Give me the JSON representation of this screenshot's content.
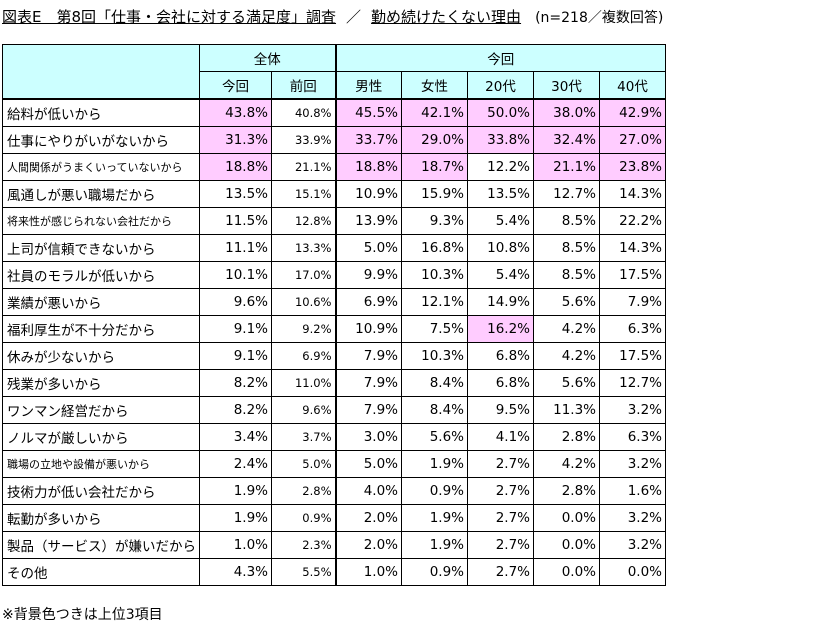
{
  "title": {
    "main": "図表E　第8回「仕事・会社に対する満足度」調査",
    "separator": "／",
    "subtitle": "勤め続けたくない理由",
    "note": "(n=218／複数回答)"
  },
  "table": {
    "group_headers": [
      "全体",
      "今回"
    ],
    "columns": [
      "今回",
      "前回",
      "男性",
      "女性",
      "20代",
      "30代",
      "40代"
    ],
    "rows": [
      {
        "label": "給料が低いから",
        "values": [
          "43.8%",
          "40.8%",
          "45.5%",
          "42.1%",
          "50.0%",
          "38.0%",
          "42.9%"
        ],
        "highlight": [
          true,
          false,
          true,
          true,
          true,
          true,
          true
        ]
      },
      {
        "label": "仕事にやりがいがないから",
        "values": [
          "31.3%",
          "33.9%",
          "33.7%",
          "29.0%",
          "33.8%",
          "32.4%",
          "27.0%"
        ],
        "highlight": [
          true,
          false,
          true,
          true,
          true,
          true,
          true
        ]
      },
      {
        "label": "人間関係がうまくいっていないから",
        "values": [
          "18.8%",
          "21.1%",
          "18.8%",
          "18.7%",
          "12.2%",
          "21.1%",
          "23.8%"
        ],
        "highlight": [
          true,
          false,
          true,
          true,
          false,
          true,
          true
        ]
      },
      {
        "label": "風通しが悪い職場だから",
        "values": [
          "13.5%",
          "15.1%",
          "10.9%",
          "15.9%",
          "13.5%",
          "12.7%",
          "14.3%"
        ],
        "highlight": [
          false,
          false,
          false,
          false,
          false,
          false,
          false
        ]
      },
      {
        "label": "将来性が感じられない会社だから",
        "values": [
          "11.5%",
          "12.8%",
          "13.9%",
          "9.3%",
          "5.4%",
          "8.5%",
          "22.2%"
        ],
        "highlight": [
          false,
          false,
          false,
          false,
          false,
          false,
          false
        ]
      },
      {
        "label": "上司が信頼できないから",
        "values": [
          "11.1%",
          "13.3%",
          "5.0%",
          "16.8%",
          "10.8%",
          "8.5%",
          "14.3%"
        ],
        "highlight": [
          false,
          false,
          false,
          false,
          false,
          false,
          false
        ]
      },
      {
        "label": "社員のモラルが低いから",
        "values": [
          "10.1%",
          "17.0%",
          "9.9%",
          "10.3%",
          "5.4%",
          "8.5%",
          "17.5%"
        ],
        "highlight": [
          false,
          false,
          false,
          false,
          false,
          false,
          false
        ]
      },
      {
        "label": "業績が悪いから",
        "values": [
          "9.6%",
          "10.6%",
          "6.9%",
          "12.1%",
          "14.9%",
          "5.6%",
          "7.9%"
        ],
        "highlight": [
          false,
          false,
          false,
          false,
          false,
          false,
          false
        ]
      },
      {
        "label": "福利厚生が不十分だから",
        "values": [
          "9.1%",
          "9.2%",
          "10.9%",
          "7.5%",
          "16.2%",
          "4.2%",
          "6.3%"
        ],
        "highlight": [
          false,
          false,
          false,
          false,
          true,
          false,
          false
        ]
      },
      {
        "label": "休みが少ないから",
        "values": [
          "9.1%",
          "6.9%",
          "7.9%",
          "10.3%",
          "6.8%",
          "4.2%",
          "17.5%"
        ],
        "highlight": [
          false,
          false,
          false,
          false,
          false,
          false,
          false
        ]
      },
      {
        "label": "残業が多いから",
        "values": [
          "8.2%",
          "11.0%",
          "7.9%",
          "8.4%",
          "6.8%",
          "5.6%",
          "12.7%"
        ],
        "highlight": [
          false,
          false,
          false,
          false,
          false,
          false,
          false
        ]
      },
      {
        "label": "ワンマン経営だから",
        "values": [
          "8.2%",
          "9.6%",
          "7.9%",
          "8.4%",
          "9.5%",
          "11.3%",
          "3.2%"
        ],
        "highlight": [
          false,
          false,
          false,
          false,
          false,
          false,
          false
        ]
      },
      {
        "label": "ノルマが厳しいから",
        "values": [
          "3.4%",
          "3.7%",
          "3.0%",
          "5.6%",
          "4.1%",
          "2.8%",
          "6.3%"
        ],
        "highlight": [
          false,
          false,
          false,
          false,
          false,
          false,
          false
        ]
      },
      {
        "label": "職場の立地や設備が悪いから",
        "values": [
          "2.4%",
          "5.0%",
          "5.0%",
          "1.9%",
          "2.7%",
          "4.2%",
          "3.2%"
        ],
        "highlight": [
          false,
          false,
          false,
          false,
          false,
          false,
          false
        ]
      },
      {
        "label": "技術力が低い会社だから",
        "values": [
          "1.9%",
          "2.8%",
          "4.0%",
          "0.9%",
          "2.7%",
          "2.8%",
          "1.6%"
        ],
        "highlight": [
          false,
          false,
          false,
          false,
          false,
          false,
          false
        ]
      },
      {
        "label": "転勤が多いから",
        "values": [
          "1.9%",
          "0.9%",
          "2.0%",
          "1.9%",
          "2.7%",
          "0.0%",
          "3.2%"
        ],
        "highlight": [
          false,
          false,
          false,
          false,
          false,
          false,
          false
        ]
      },
      {
        "label": "製品（サービス）が嫌いだから",
        "values": [
          "1.0%",
          "2.3%",
          "2.0%",
          "1.9%",
          "2.7%",
          "0.0%",
          "3.2%"
        ],
        "highlight": [
          false,
          false,
          false,
          false,
          false,
          false,
          false
        ]
      },
      {
        "label": "その他",
        "values": [
          "4.3%",
          "5.5%",
          "1.0%",
          "0.9%",
          "2.7%",
          "0.0%",
          "0.0%"
        ],
        "highlight": [
          false,
          false,
          false,
          false,
          false,
          false,
          false
        ]
      }
    ]
  },
  "footnote": "※背景色つきは上位3項目",
  "colors": {
    "header_bg": "#ccffff",
    "highlight_bg": "#ffccff"
  }
}
